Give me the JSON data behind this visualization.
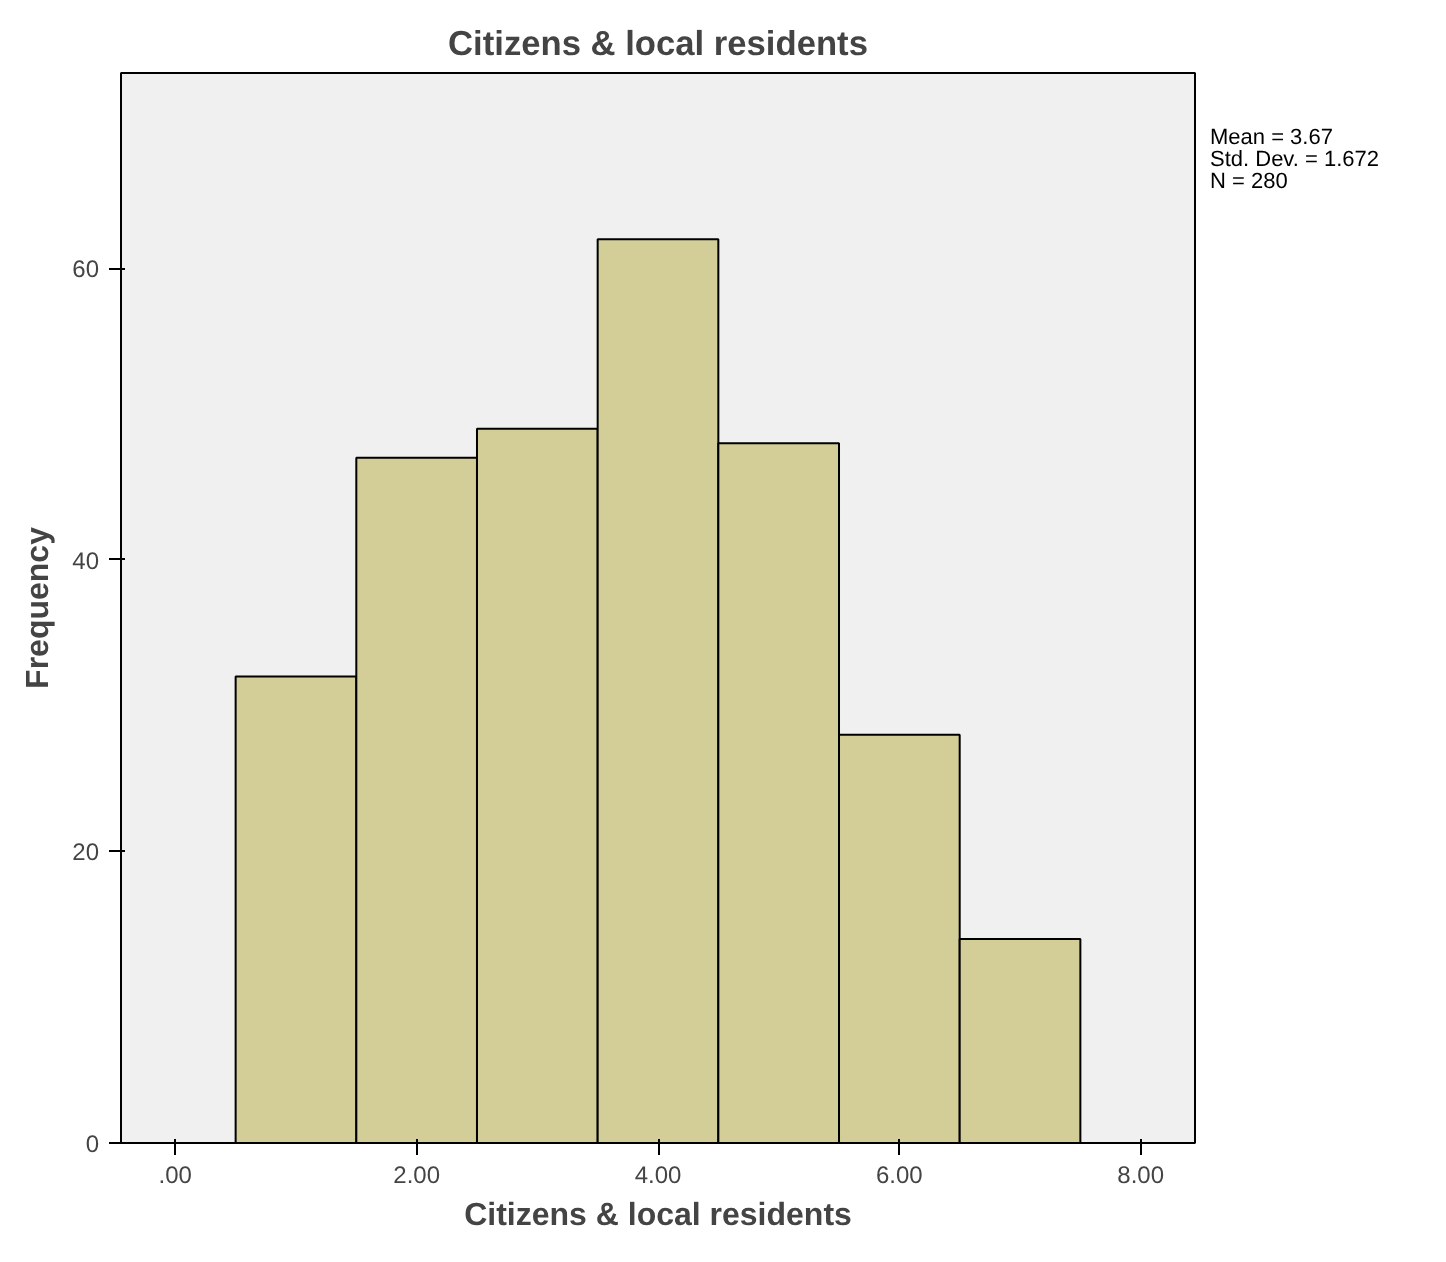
{
  "chart_data": {
    "type": "histogram",
    "title": "Citizens & local residents",
    "xlabel": "Citizens & local residents",
    "ylabel": "Frequency",
    "bins": [
      0.5,
      1.5,
      2.5,
      3.5,
      4.5,
      5.5,
      6.5,
      7.5
    ],
    "values": [
      32,
      47,
      49,
      62,
      48,
      28,
      14
    ],
    "color": "#d3ce97",
    "xlim": [
      -0.45,
      8.45
    ],
    "ylim": [
      0,
      73.4
    ],
    "xticks": [
      {
        "value": 0,
        "label": ".00"
      },
      {
        "value": 2,
        "label": "2.00"
      },
      {
        "value": 4,
        "label": "4.00"
      },
      {
        "value": 6,
        "label": "6.00"
      },
      {
        "value": 8,
        "label": "8.00"
      }
    ],
    "yticks": [
      0,
      20,
      40,
      60
    ],
    "grid": false,
    "annotations": [
      "Mean = 3.67",
      "Std. Dev. = 1.672",
      "N = 280"
    ]
  }
}
